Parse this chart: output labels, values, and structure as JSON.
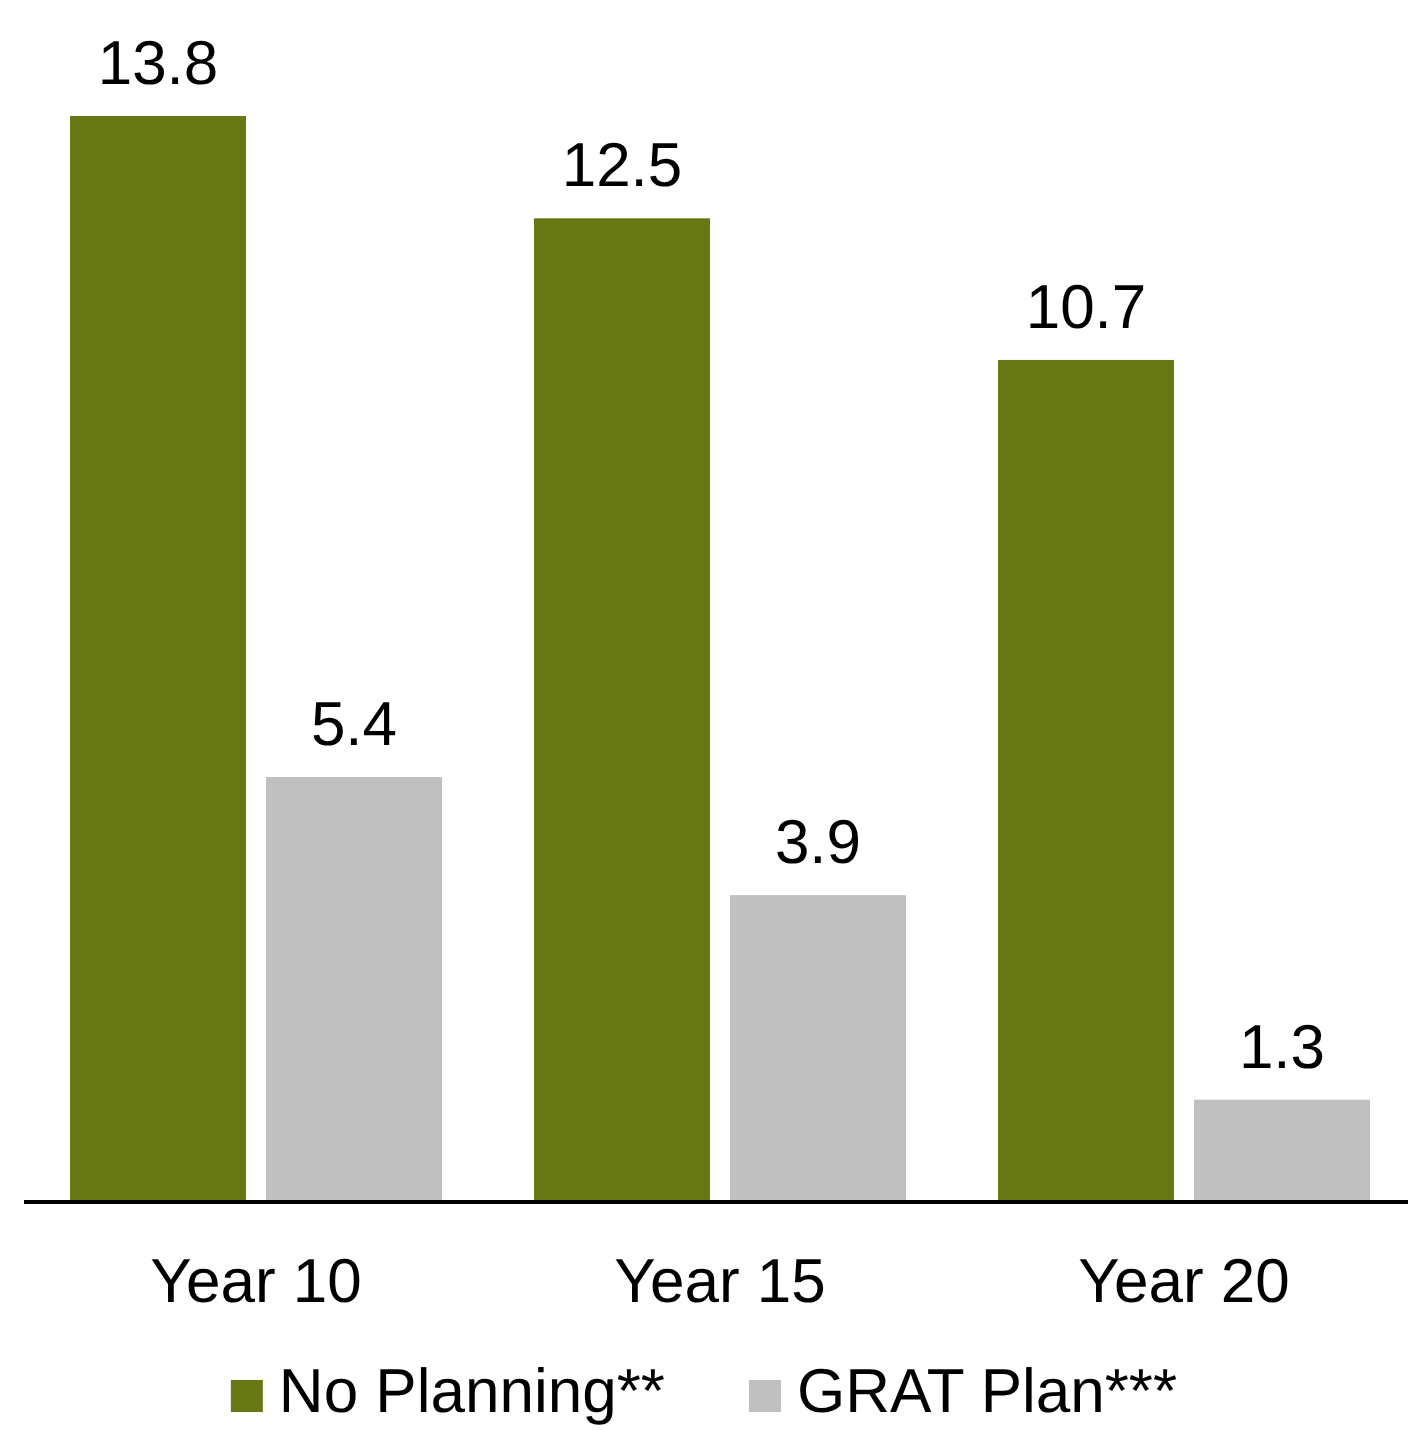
{
  "chart_data": {
    "type": "bar",
    "categories": [
      "Year 10",
      "Year 15",
      "Year 20"
    ],
    "series": [
      {
        "name": "No Planning**",
        "color": "#687814",
        "values": [
          13.8,
          12.5,
          10.7
        ]
      },
      {
        "name": "GRAT Plan***",
        "color": "#c0c0c0",
        "values": [
          5.4,
          3.9,
          1.3
        ]
      }
    ],
    "data_labels": true,
    "legend": "bottom"
  }
}
